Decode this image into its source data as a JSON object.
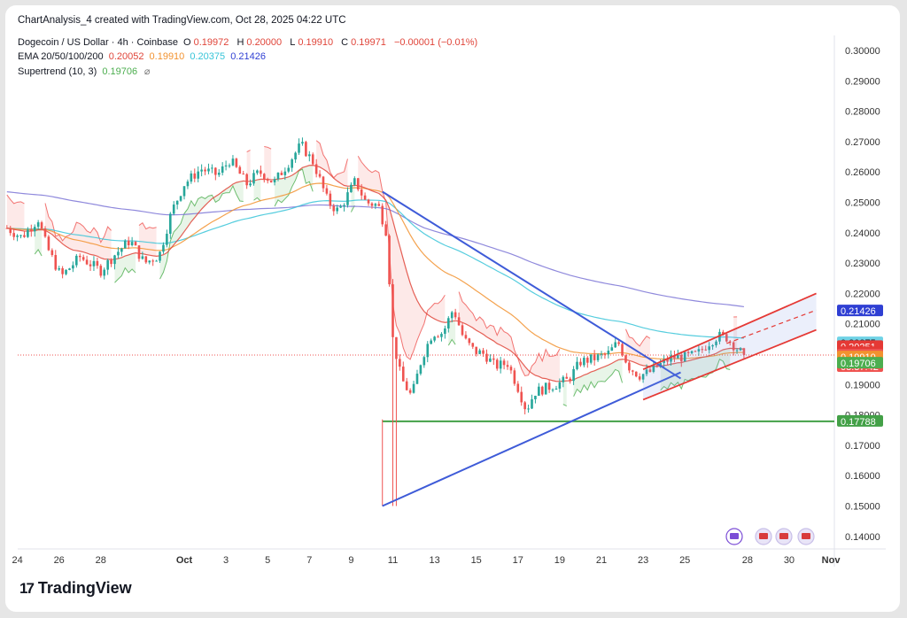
{
  "credit": "ChartAnalysis_4 created with TradingView.com, Oct 28, 2025 04:22 UTC",
  "legend": {
    "symbol": "Dogecoin / US Dollar · 4h · Coinbase",
    "o_label": "O",
    "o": "0.19972",
    "h_label": "H",
    "h": "0.20000",
    "l_label": "L",
    "l": "0.19910",
    "c_label": "C",
    "c": "0.19971",
    "chg": "−0.00001 (−0.01%)",
    "ema_label": "EMA 20/50/100/200",
    "ema20": "0.20052",
    "ema50": "0.19910",
    "ema100": "0.20375",
    "ema200": "0.21426",
    "st_label": "Supertrend (10, 3)",
    "st": "0.19706",
    "st_icon": "⌀"
  },
  "logo": {
    "mark": "17",
    "text": "TradingView"
  },
  "colors": {
    "up": "#26a69a",
    "down": "#ef5350",
    "ema20": "#e0453a",
    "ema50": "#f2922f",
    "ema100": "#38c4d8",
    "ema200": "#7b74d6",
    "trend": "#3e5bd8",
    "channel": "#e53935",
    "support": "#43a047"
  },
  "chart_data": {
    "type": "candlestick",
    "title": "Dogecoin / US Dollar · 4h · Coinbase",
    "ylim": [
      0.135,
      0.305
    ],
    "y_ticks": [
      "0.30000",
      "0.29000",
      "0.28000",
      "0.27000",
      "0.26000",
      "0.25000",
      "0.24000",
      "0.23000",
      "0.22000",
      "0.21000",
      "0.20000",
      "0.19000",
      "0.18000",
      "0.17000",
      "0.16000",
      "0.15000",
      "0.14000"
    ],
    "x_ticks": [
      "24",
      "26",
      "28",
      "Oct",
      "3",
      "5",
      "7",
      "9",
      "11",
      "13",
      "15",
      "17",
      "19",
      "21",
      "23",
      "25",
      "28",
      "30",
      "Nov"
    ],
    "x_tick_days": [
      -7,
      -5,
      -3,
      1,
      3,
      5,
      7,
      9,
      11,
      13,
      15,
      17,
      19,
      21,
      23,
      25,
      28,
      30,
      32
    ],
    "closes_waypoints": [
      [
        -7.5,
        0.2415
      ],
      [
        -6.8,
        0.2385
      ],
      [
        -6.0,
        0.2445
      ],
      [
        -5.6,
        0.2355
      ],
      [
        -4.9,
        0.2255
      ],
      [
        -4.0,
        0.232
      ],
      [
        -3.0,
        0.2275
      ],
      [
        -2.3,
        0.233
      ],
      [
        -1.6,
        0.2375
      ],
      [
        -0.9,
        0.23
      ],
      [
        -0.2,
        0.2325
      ],
      [
        0.4,
        0.247
      ],
      [
        1.0,
        0.256
      ],
      [
        1.8,
        0.261
      ],
      [
        2.6,
        0.259
      ],
      [
        3.2,
        0.264
      ],
      [
        4.0,
        0.256
      ],
      [
        4.6,
        0.26
      ],
      [
        5.3,
        0.2565
      ],
      [
        6.0,
        0.263
      ],
      [
        6.6,
        0.269
      ],
      [
        7.2,
        0.263
      ],
      [
        7.9,
        0.25
      ],
      [
        8.4,
        0.247
      ],
      [
        9.2,
        0.257
      ],
      [
        9.7,
        0.25
      ],
      [
        10.3,
        0.249
      ],
      [
        10.7,
        0.24
      ],
      [
        11.0,
        0.205
      ],
      [
        11.4,
        0.192
      ],
      [
        11.9,
        0.186
      ],
      [
        12.4,
        0.199
      ],
      [
        12.9,
        0.207
      ],
      [
        13.4,
        0.207
      ],
      [
        13.9,
        0.215
      ],
      [
        14.4,
        0.205
      ],
      [
        14.9,
        0.201
      ],
      [
        15.4,
        0.2
      ],
      [
        15.9,
        0.196
      ],
      [
        16.5,
        0.197
      ],
      [
        17.0,
        0.189
      ],
      [
        17.4,
        0.1815
      ],
      [
        17.8,
        0.1875
      ],
      [
        18.6,
        0.1895
      ],
      [
        19.4,
        0.1915
      ],
      [
        20.0,
        0.1975
      ],
      [
        20.6,
        0.1985
      ],
      [
        21.3,
        0.2
      ],
      [
        21.8,
        0.204
      ],
      [
        22.3,
        0.196
      ],
      [
        22.8,
        0.193
      ],
      [
        23.3,
        0.194
      ],
      [
        23.8,
        0.1965
      ],
      [
        24.4,
        0.199
      ],
      [
        25.0,
        0.199
      ],
      [
        25.6,
        0.2
      ],
      [
        26.1,
        0.2035
      ],
      [
        26.6,
        0.206
      ],
      [
        27.0,
        0.2055
      ],
      [
        27.4,
        0.2025
      ],
      [
        27.8,
        0.1997
      ]
    ],
    "support_level": 0.17788,
    "triangle": {
      "upper": [
        [
          10.5,
          0.2535
        ],
        [
          24.8,
          0.192
        ]
      ],
      "lower": [
        [
          10.5,
          0.15
        ],
        [
          24.8,
          0.194
        ]
      ],
      "apex_wick": [
        [
          10.5,
          0.15
        ],
        [
          10.5,
          0.1785
        ]
      ]
    },
    "channel": {
      "lower": [
        [
          23.0,
          0.185
        ],
        [
          31.3,
          0.208
        ]
      ],
      "upper": [
        [
          23.0,
          0.195
        ],
        [
          31.3,
          0.22
        ]
      ],
      "mid_dashed": [
        [
          27.0,
          0.2035
        ],
        [
          31.3,
          0.2145
        ]
      ]
    },
    "price_labels": [
      {
        "label": "0.21426",
        "y": 0.21426,
        "color": "#2f3fd3"
      },
      {
        "label": "0.20375",
        "y": 0.20375,
        "color": "#6fd3e6",
        "text_color": "#131722"
      },
      {
        "label": "0.20251",
        "y": 0.20251,
        "color": "#e53935"
      },
      {
        "label": "0.20052",
        "y": 0.20052,
        "color": "#e53935"
      },
      {
        "label": "0.19971",
        "sub": "03:37:42",
        "y": 0.19971,
        "color": "#ef5350"
      },
      {
        "label": "0.19910",
        "y": 0.1991,
        "color": "#f2922f"
      },
      {
        "label": "0.19706",
        "y": 0.19706,
        "color": "#4cae4f"
      },
      {
        "label": "0.17788",
        "y": 0.17788,
        "color": "#43a047"
      }
    ]
  }
}
